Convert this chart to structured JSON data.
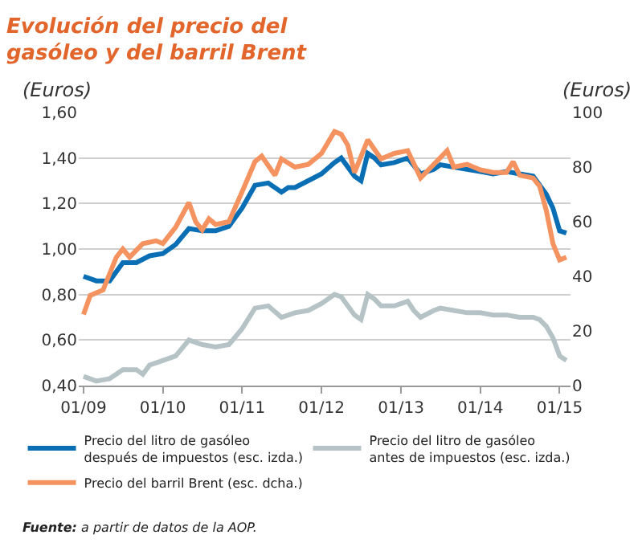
{
  "chart_data": {
    "type": "line",
    "title": "Evolución del precio del gasóleo y del barril Brent",
    "ylabel": "(Euros)",
    "y2label": "(Euros)",
    "annotations": [
      "Fuente: a partir de datos de la AOP."
    ],
    "legend": "bottom",
    "grid": "y",
    "marker": "none",
    "line_style": "solid",
    "xlim": [
      "2008-12-10",
      "2015-02-20"
    ],
    "xticks": [
      {
        "value": "2009-01-01",
        "label": "01/09"
      },
      {
        "value": "2010-01-01",
        "label": "01/10"
      },
      {
        "value": "2011-01-01",
        "label": "01/11"
      },
      {
        "value": "2012-01-01",
        "label": "01/12"
      },
      {
        "value": "2013-01-01",
        "label": "01/13"
      },
      {
        "value": "2014-01-01",
        "label": "01/14"
      },
      {
        "value": "2015-01-01",
        "label": "01/15"
      }
    ],
    "ylim": [
      0.4,
      1.6
    ],
    "yticks": [
      {
        "value": 0.4,
        "label": "0,40"
      },
      {
        "value": 0.6,
        "label": "0,60"
      },
      {
        "value": 0.8,
        "label": "0,80"
      },
      {
        "value": 1.0,
        "label": "1,00"
      },
      {
        "value": 1.2,
        "label": "1,20"
      },
      {
        "value": 1.4,
        "label": "1,40"
      },
      {
        "value": 1.6,
        "label": "1,60"
      }
    ],
    "y2lim": [
      0,
      100
    ],
    "y2ticks": [
      0,
      20,
      40,
      60,
      80,
      100
    ],
    "series": [
      {
        "name": "Precio del litro de gasóleo después de impuestos (esc. izda.)",
        "color": "#0a6eb4",
        "x": [
          "2009-01",
          "2009-03",
          "2009-05",
          "2009-07",
          "2009-09",
          "2009-11",
          "2010-01",
          "2010-03",
          "2010-05",
          "2010-07",
          "2010-09",
          "2010-11",
          "2011-01",
          "2011-03",
          "2011-05",
          "2011-07",
          "2011-08",
          "2011-09",
          "2011-11",
          "2012-01",
          "2012-03",
          "2012-04",
          "2012-06",
          "2012-07",
          "2012-08",
          "2012-09",
          "2012-10",
          "2012-12",
          "2013-02",
          "2013-04",
          "2013-06",
          "2013-07",
          "2013-09",
          "2013-11",
          "2014-01",
          "2014-03",
          "2014-05",
          "2014-07",
          "2014-09",
          "2014-11",
          "2014-12",
          "2015-01",
          "2015-02"
        ],
        "values": [
          0.88,
          0.86,
          0.86,
          0.94,
          0.94,
          0.97,
          0.98,
          1.02,
          1.09,
          1.08,
          1.08,
          1.1,
          1.18,
          1.28,
          1.29,
          1.25,
          1.27,
          1.27,
          1.3,
          1.33,
          1.38,
          1.4,
          1.32,
          1.3,
          1.42,
          1.4,
          1.37,
          1.38,
          1.4,
          1.33,
          1.35,
          1.37,
          1.36,
          1.35,
          1.34,
          1.33,
          1.34,
          1.33,
          1.32,
          1.24,
          1.18,
          1.08,
          1.07
        ]
      },
      {
        "name": "Precio del litro de gasóleo antes de impuestos (esc. izda.)",
        "color": "#b5c3c6",
        "x": [
          "2009-01",
          "2009-03",
          "2009-05",
          "2009-07",
          "2009-09",
          "2009-10",
          "2009-11",
          "2010-01",
          "2010-03",
          "2010-05",
          "2010-07",
          "2010-09",
          "2010-11",
          "2011-01",
          "2011-03",
          "2011-05",
          "2011-07",
          "2011-09",
          "2011-11",
          "2012-01",
          "2012-03",
          "2012-04",
          "2012-06",
          "2012-07",
          "2012-08",
          "2012-09",
          "2012-10",
          "2012-12",
          "2013-02",
          "2013-03",
          "2013-04",
          "2013-06",
          "2013-07",
          "2013-09",
          "2013-11",
          "2014-01",
          "2014-03",
          "2014-05",
          "2014-07",
          "2014-09",
          "2014-10",
          "2014-11",
          "2014-12",
          "2015-01",
          "2015-02"
        ],
        "values": [
          0.44,
          0.42,
          0.43,
          0.47,
          0.47,
          0.45,
          0.49,
          0.51,
          0.53,
          0.6,
          0.58,
          0.57,
          0.58,
          0.65,
          0.74,
          0.75,
          0.7,
          0.72,
          0.73,
          0.76,
          0.8,
          0.79,
          0.71,
          0.69,
          0.8,
          0.78,
          0.75,
          0.75,
          0.77,
          0.73,
          0.7,
          0.73,
          0.74,
          0.73,
          0.72,
          0.72,
          0.71,
          0.71,
          0.7,
          0.7,
          0.69,
          0.66,
          0.61,
          0.53,
          0.51
        ]
      },
      {
        "name": "Precio del barril Brent (esc. dcha.)",
        "color": "#f4935f",
        "axis": "y2",
        "x": [
          "2009-01",
          "2009-02",
          "2009-04",
          "2009-06",
          "2009-07",
          "2009-08",
          "2009-10",
          "2009-12",
          "2010-01",
          "2010-03",
          "2010-05",
          "2010-06",
          "2010-07",
          "2010-08",
          "2010-09",
          "2010-11",
          "2011-01",
          "2011-03",
          "2011-04",
          "2011-06",
          "2011-07",
          "2011-09",
          "2011-11",
          "2012-01",
          "2012-03",
          "2012-04",
          "2012-05",
          "2012-06",
          "2012-08",
          "2012-10",
          "2012-12",
          "2013-02",
          "2013-04",
          "2013-06",
          "2013-08",
          "2013-09",
          "2013-11",
          "2014-01",
          "2014-03",
          "2014-05",
          "2014-06",
          "2014-07",
          "2014-09",
          "2014-10",
          "2014-11",
          "2014-12",
          "2015-01",
          "2015-02"
        ],
        "values": [
          26,
          33,
          35,
          47,
          50,
          47,
          52,
          53,
          52,
          58,
          67,
          60,
          57,
          61,
          59,
          60,
          71,
          82,
          84,
          77,
          83,
          80,
          81,
          85,
          93,
          92,
          88,
          78,
          90,
          83,
          85,
          86,
          76,
          81,
          86,
          80,
          81,
          79,
          78,
          78,
          82,
          77,
          76,
          73,
          64,
          52,
          46,
          47
        ]
      }
    ]
  }
}
